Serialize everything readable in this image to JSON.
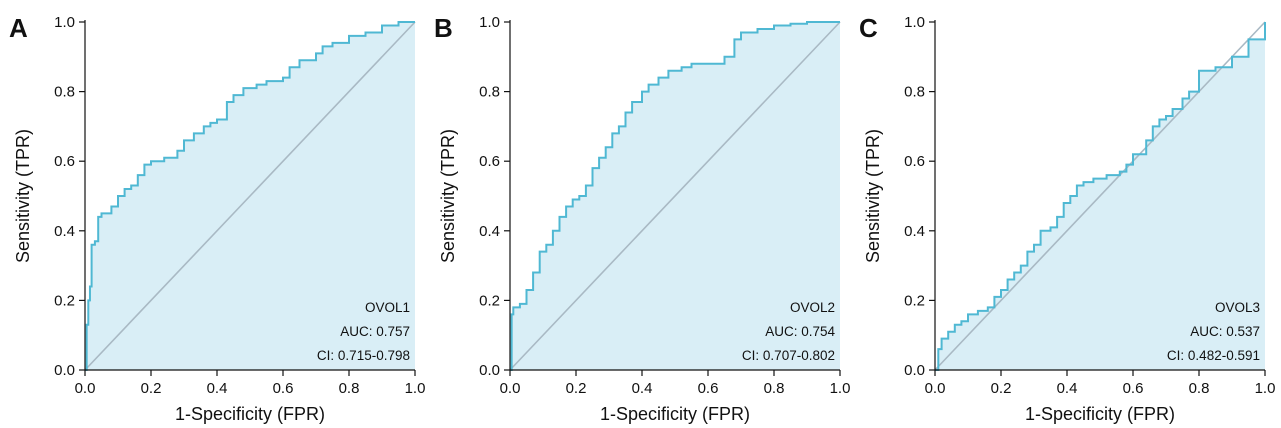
{
  "chart_data": [
    {
      "type": "line",
      "panel_label": "A",
      "xlabel": "1-Specificity (FPR)",
      "ylabel": "Sensitivity (TPR)",
      "xlim": [
        0,
        1
      ],
      "ylim": [
        0,
        1
      ],
      "xticks": [
        "0.0",
        "0.2",
        "0.4",
        "0.6",
        "0.8",
        "1.0"
      ],
      "yticks": [
        "0.0",
        "0.2",
        "0.4",
        "0.6",
        "0.8",
        "1.0"
      ],
      "annotations": [
        "OVOL1",
        "AUC: 0.757",
        "CI: 0.715-0.798"
      ],
      "diagonal": true,
      "grid": false,
      "series": [
        {
          "x": [
            0,
            0.005,
            0.01,
            0.015,
            0.02,
            0.03,
            0.04,
            0.05,
            0.06,
            0.08,
            0.1,
            0.12,
            0.14,
            0.16,
            0.18,
            0.2,
            0.24,
            0.28,
            0.3,
            0.33,
            0.36,
            0.38,
            0.4,
            0.43,
            0.45,
            0.48,
            0.52,
            0.55,
            0.6,
            0.62,
            0.65,
            0.7,
            0.72,
            0.75,
            0.8,
            0.85,
            0.9,
            0.95,
            1.0
          ],
          "y": [
            0,
            0.13,
            0.2,
            0.24,
            0.36,
            0.37,
            0.44,
            0.45,
            0.45,
            0.47,
            0.5,
            0.52,
            0.53,
            0.56,
            0.59,
            0.6,
            0.61,
            0.63,
            0.66,
            0.68,
            0.7,
            0.71,
            0.72,
            0.77,
            0.79,
            0.81,
            0.82,
            0.83,
            0.84,
            0.87,
            0.89,
            0.91,
            0.93,
            0.94,
            0.96,
            0.97,
            0.99,
            1.0,
            1.0
          ]
        }
      ]
    },
    {
      "type": "line",
      "panel_label": "B",
      "xlabel": "1-Specificity (FPR)",
      "ylabel": "Sensitivity (TPR)",
      "xlim": [
        0,
        1
      ],
      "ylim": [
        0,
        1
      ],
      "xticks": [
        "0.0",
        "0.2",
        "0.4",
        "0.6",
        "0.8",
        "1.0"
      ],
      "yticks": [
        "0.0",
        "0.2",
        "0.4",
        "0.6",
        "0.8",
        "1.0"
      ],
      "annotations": [
        "OVOL2",
        "AUC: 0.754",
        "CI: 0.707-0.802"
      ],
      "diagonal": true,
      "grid": false,
      "series": [
        {
          "x": [
            0,
            0.005,
            0.01,
            0.03,
            0.05,
            0.07,
            0.09,
            0.11,
            0.13,
            0.15,
            0.17,
            0.19,
            0.21,
            0.23,
            0.25,
            0.27,
            0.29,
            0.31,
            0.33,
            0.35,
            0.37,
            0.4,
            0.42,
            0.45,
            0.48,
            0.52,
            0.55,
            0.6,
            0.65,
            0.68,
            0.7,
            0.75,
            0.8,
            0.85,
            0.9,
            0.95,
            1.0
          ],
          "y": [
            0,
            0.16,
            0.18,
            0.19,
            0.23,
            0.28,
            0.34,
            0.36,
            0.4,
            0.44,
            0.47,
            0.49,
            0.5,
            0.53,
            0.58,
            0.61,
            0.64,
            0.68,
            0.7,
            0.74,
            0.77,
            0.8,
            0.82,
            0.84,
            0.86,
            0.87,
            0.88,
            0.88,
            0.9,
            0.95,
            0.97,
            0.98,
            0.99,
            0.995,
            1.0,
            1.0,
            1.0
          ]
        }
      ]
    },
    {
      "type": "line",
      "panel_label": "C",
      "xlabel": "1-Specificity (FPR)",
      "ylabel": "Sensitivity (TPR)",
      "xlim": [
        0,
        1
      ],
      "ylim": [
        0,
        1
      ],
      "xticks": [
        "0.0",
        "0.2",
        "0.4",
        "0.6",
        "0.8",
        "1.0"
      ],
      "yticks": [
        "0.0",
        "0.2",
        "0.4",
        "0.6",
        "0.8",
        "1.0"
      ],
      "annotations": [
        "OVOL3",
        "AUC: 0.537",
        "CI: 0.482-0.591"
      ],
      "diagonal": true,
      "grid": false,
      "series": [
        {
          "x": [
            0,
            0.01,
            0.02,
            0.04,
            0.06,
            0.08,
            0.1,
            0.13,
            0.16,
            0.18,
            0.2,
            0.22,
            0.24,
            0.26,
            0.28,
            0.3,
            0.32,
            0.35,
            0.37,
            0.39,
            0.41,
            0.43,
            0.45,
            0.48,
            0.52,
            0.56,
            0.58,
            0.6,
            0.62,
            0.64,
            0.66,
            0.68,
            0.7,
            0.72,
            0.75,
            0.77,
            0.8,
            0.85,
            0.9,
            0.95,
            1.0
          ],
          "y": [
            0,
            0.06,
            0.09,
            0.11,
            0.13,
            0.14,
            0.16,
            0.17,
            0.18,
            0.21,
            0.23,
            0.26,
            0.28,
            0.3,
            0.34,
            0.36,
            0.4,
            0.41,
            0.44,
            0.48,
            0.5,
            0.53,
            0.54,
            0.55,
            0.56,
            0.57,
            0.59,
            0.62,
            0.62,
            0.66,
            0.7,
            0.72,
            0.73,
            0.75,
            0.78,
            0.8,
            0.86,
            0.87,
            0.9,
            0.95,
            1.0
          ]
        }
      ]
    }
  ],
  "colors": {
    "roc_line": "#4fb8d3",
    "roc_fill": "#d9eef6",
    "diagonal": "#a9b9c4",
    "axis": "#111111"
  }
}
